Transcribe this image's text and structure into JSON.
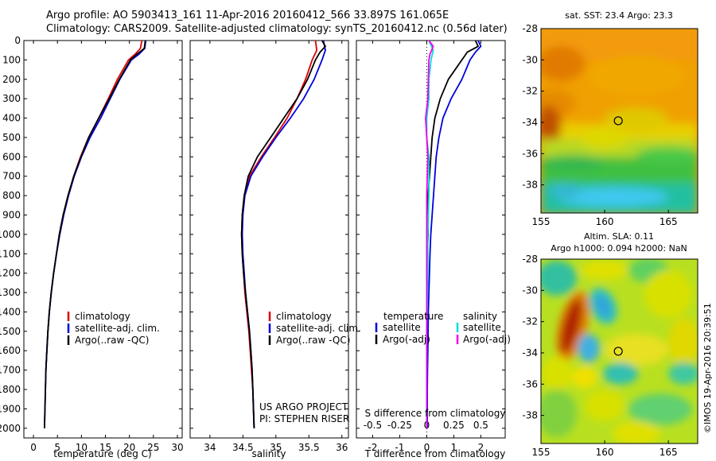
{
  "header": {
    "line1": "Argo profile: AO 5903413_161 11-Apr-2016 20160412_566 33.897S 161.065E",
    "line2": "Climatology: CARS2009. Satellite-adjusted climatology: synTS_20160412.nc (0.56d later)"
  },
  "credit": "US ARGO PROJECT",
  "pi": "PI: STEPHEN RISER",
  "watermark": "©IMOS 19-Apr-2016 20:39:51",
  "colors": {
    "climatology": "#dd0000",
    "satellite": "#0000dd",
    "argo": "#000000",
    "sal_sat": "#00dddd",
    "sal_argo": "#ee00ee"
  },
  "chart_data": [
    {
      "type": "line",
      "xlabel": "temperature (deg C)",
      "ylabel": "",
      "xlim": [
        -2,
        31
      ],
      "ylim": [
        2050,
        0
      ],
      "xticks": [
        0,
        5,
        10,
        15,
        20,
        25,
        30
      ],
      "yticks": [
        0,
        100,
        200,
        300,
        400,
        500,
        600,
        700,
        800,
        900,
        1000,
        1100,
        1200,
        1300,
        1400,
        1500,
        1600,
        1700,
        1800,
        1900,
        2000
      ],
      "legend": [
        "climatology",
        "satellite-adj. clim.",
        "Argo(..raw -QC)"
      ],
      "series": [
        {
          "name": "climatology",
          "color": "#dd0000",
          "points": [
            [
              22.6,
              0
            ],
            [
              22.3,
              40
            ],
            [
              21.2,
              70
            ],
            [
              19.8,
              100
            ],
            [
              17.5,
              200
            ],
            [
              15.6,
              300
            ],
            [
              13.6,
              400
            ],
            [
              11.5,
              500
            ],
            [
              9.8,
              600
            ],
            [
              8.4,
              700
            ],
            [
              7.2,
              800
            ],
            [
              6.2,
              900
            ],
            [
              5.4,
              1000
            ],
            [
              4.8,
              1100
            ],
            [
              4.2,
              1200
            ],
            [
              3.7,
              1300
            ],
            [
              3.3,
              1400
            ],
            [
              3.0,
              1500
            ],
            [
              2.8,
              1600
            ],
            [
              2.6,
              1700
            ]
          ]
        },
        {
          "name": "satellite-adj. clim.",
          "color": "#0000dd",
          "points": [
            [
              23.4,
              0
            ],
            [
              23.2,
              40
            ],
            [
              22.0,
              70
            ],
            [
              20.4,
              100
            ],
            [
              18.0,
              200
            ],
            [
              16.0,
              300
            ],
            [
              14.0,
              400
            ],
            [
              11.8,
              500
            ],
            [
              10.0,
              600
            ],
            [
              8.5,
              700
            ],
            [
              7.3,
              800
            ],
            [
              6.3,
              900
            ],
            [
              5.5,
              1000
            ],
            [
              4.8,
              1100
            ],
            [
              4.2,
              1200
            ],
            [
              3.7,
              1300
            ],
            [
              3.3,
              1400
            ],
            [
              3.0,
              1500
            ],
            [
              2.8,
              1600
            ],
            [
              2.6,
              1700
            ],
            [
              2.5,
              1800
            ],
            [
              2.4,
              1900
            ],
            [
              2.3,
              2000
            ]
          ]
        },
        {
          "name": "Argo(..raw -QC)",
          "color": "#000000",
          "points": [
            [
              23.3,
              0
            ],
            [
              23.1,
              40
            ],
            [
              21.6,
              70
            ],
            [
              20.2,
              100
            ],
            [
              17.9,
              200
            ],
            [
              15.8,
              300
            ],
            [
              13.6,
              400
            ],
            [
              11.5,
              500
            ],
            [
              9.9,
              600
            ],
            [
              8.4,
              700
            ],
            [
              7.2,
              800
            ],
            [
              6.2,
              900
            ],
            [
              5.4,
              1000
            ],
            [
              4.8,
              1100
            ],
            [
              4.2,
              1200
            ],
            [
              3.7,
              1300
            ],
            [
              3.3,
              1400
            ],
            [
              3.0,
              1500
            ],
            [
              2.8,
              1600
            ],
            [
              2.6,
              1700
            ],
            [
              2.5,
              1800
            ],
            [
              2.4,
              1900
            ],
            [
              2.3,
              2000
            ]
          ]
        }
      ]
    },
    {
      "type": "line",
      "xlabel": "salinity",
      "ylabel": "",
      "xlim": [
        33.7,
        36.1
      ],
      "ylim": [
        2050,
        0
      ],
      "xticks": [
        34,
        34.5,
        35,
        35.5,
        36
      ],
      "legend": [
        "climatology",
        "satellite-adj. clim.",
        "Argo(..raw -QC)"
      ],
      "series": [
        {
          "name": "climatology",
          "color": "#dd0000",
          "points": [
            [
              35.6,
              0
            ],
            [
              35.62,
              50
            ],
            [
              35.55,
              100
            ],
            [
              35.45,
              200
            ],
            [
              35.32,
              300
            ],
            [
              35.17,
              400
            ],
            [
              34.98,
              500
            ],
            [
              34.78,
              600
            ],
            [
              34.6,
              700
            ],
            [
              34.52,
              800
            ],
            [
              34.49,
              900
            ],
            [
              34.48,
              1000
            ],
            [
              34.49,
              1100
            ],
            [
              34.51,
              1200
            ],
            [
              34.53,
              1300
            ],
            [
              34.56,
              1400
            ],
            [
              34.59,
              1500
            ],
            [
              34.61,
              1600
            ],
            [
              34.63,
              1700
            ],
            [
              34.65,
              1800
            ],
            [
              34.66,
              1900
            ],
            [
              34.67,
              2000
            ]
          ]
        },
        {
          "name": "satellite-adj. clim.",
          "color": "#0000dd",
          "points": [
            [
              35.72,
              0
            ],
            [
              35.75,
              50
            ],
            [
              35.7,
              100
            ],
            [
              35.58,
              200
            ],
            [
              35.42,
              300
            ],
            [
              35.22,
              400
            ],
            [
              35.0,
              500
            ],
            [
              34.8,
              600
            ],
            [
              34.62,
              700
            ],
            [
              34.53,
              800
            ],
            [
              34.5,
              900
            ],
            [
              34.49,
              1000
            ],
            [
              34.5,
              1100
            ],
            [
              34.52,
              1200
            ],
            [
              34.54,
              1300
            ],
            [
              34.57,
              1400
            ],
            [
              34.6,
              1500
            ],
            [
              34.62,
              1600
            ],
            [
              34.64,
              1700
            ],
            [
              34.65,
              1800
            ],
            [
              34.66,
              1900
            ],
            [
              34.67,
              2000
            ]
          ]
        },
        {
          "name": "Argo(..raw -QC)",
          "color": "#000000",
          "points": [
            [
              35.7,
              0
            ],
            [
              35.75,
              30
            ],
            [
              35.67,
              60
            ],
            [
              35.6,
              100
            ],
            [
              35.48,
              200
            ],
            [
              35.32,
              300
            ],
            [
              35.12,
              400
            ],
            [
              34.92,
              500
            ],
            [
              34.72,
              600
            ],
            [
              34.58,
              700
            ],
            [
              34.52,
              800
            ],
            [
              34.49,
              900
            ],
            [
              34.48,
              1000
            ],
            [
              34.49,
              1100
            ],
            [
              34.51,
              1200
            ],
            [
              34.54,
              1300
            ],
            [
              34.57,
              1400
            ],
            [
              34.6,
              1500
            ],
            [
              34.62,
              1600
            ],
            [
              34.64,
              1700
            ],
            [
              34.65,
              1800
            ],
            [
              34.66,
              1900
            ],
            [
              34.67,
              2000
            ]
          ]
        }
      ]
    },
    {
      "type": "line",
      "xlabel": "T difference from climatology",
      "xlabel_top": "S difference from climatology",
      "xlim": [
        -2.6,
        2.9
      ],
      "s_axis_scale": 0.25,
      "ylim": [
        2050,
        0
      ],
      "xticks": [
        -2,
        -1,
        0,
        1,
        2
      ],
      "sticks": [
        "-0.5",
        "-0.25",
        "0",
        "0.25",
        "0.5"
      ],
      "legend_temperature_title": "temperature",
      "legend_salinity_title": "salinity",
      "legend": [
        "satellite",
        "Argo(-adj)",
        "satellite",
        "Argo(-adj)"
      ],
      "series": [
        {
          "name": "satellite",
          "group": "temperature",
          "color": "#0000dd",
          "points": [
            [
              1.9,
              0
            ],
            [
              2.0,
              30
            ],
            [
              1.8,
              60
            ],
            [
              1.6,
              100
            ],
            [
              1.3,
              200
            ],
            [
              0.9,
              300
            ],
            [
              0.6,
              400
            ],
            [
              0.45,
              500
            ],
            [
              0.35,
              600
            ],
            [
              0.3,
              700
            ],
            [
              0.25,
              800
            ],
            [
              0.2,
              900
            ],
            [
              0.15,
              1000
            ],
            [
              0.12,
              1100
            ],
            [
              0.1,
              1200
            ],
            [
              0.08,
              1300
            ],
            [
              0.06,
              1400
            ],
            [
              0.05,
              1500
            ],
            [
              0.04,
              1600
            ],
            [
              0.03,
              1700
            ],
            [
              0.02,
              1800
            ],
            [
              0.02,
              1900
            ],
            [
              0.02,
              2000
            ]
          ]
        },
        {
          "name": "Argo(-adj)",
          "group": "temperature",
          "color": "#000000",
          "points": [
            [
              1.8,
              0
            ],
            [
              1.9,
              30
            ],
            [
              1.5,
              60
            ],
            [
              1.3,
              100
            ],
            [
              0.8,
              200
            ],
            [
              0.5,
              300
            ],
            [
              0.3,
              400
            ],
            [
              0.2,
              500
            ],
            [
              0.15,
              600
            ],
            [
              0.1,
              700
            ],
            [
              0.05,
              800
            ],
            [
              0.05,
              900
            ],
            [
              0.05,
              1000
            ],
            [
              0.02,
              1100
            ],
            [
              0.0,
              1200
            ],
            [
              0.0,
              1300
            ],
            [
              0.0,
              1400
            ],
            [
              0.0,
              1500
            ],
            [
              0.0,
              1600
            ],
            [
              0.0,
              1700
            ],
            [
              0.0,
              1800
            ],
            [
              0.0,
              1900
            ],
            [
              0.0,
              2000
            ]
          ]
        },
        {
          "name": "satellite",
          "group": "salinity",
          "color": "#00dddd",
          "points": [
            [
              0.02,
              0
            ],
            [
              0.06,
              50
            ],
            [
              0.04,
              100
            ],
            [
              0.02,
              200
            ],
            [
              0.02,
              300
            ],
            [
              0.0,
              400
            ],
            [
              0.0,
              500
            ],
            [
              0.02,
              600
            ],
            [
              0.02,
              800
            ],
            [
              0.01,
              1000
            ],
            [
              0.01,
              1200
            ],
            [
              0.0,
              1500
            ],
            [
              0.0,
              1800
            ],
            [
              0.0,
              2000
            ]
          ]
        },
        {
          "name": "Argo(-adj)",
          "group": "salinity",
          "color": "#ee00ee",
          "points": [
            [
              0.02,
              0
            ],
            [
              0.06,
              30
            ],
            [
              0.03,
              70
            ],
            [
              0.02,
              100
            ],
            [
              0.015,
              200
            ],
            [
              0.01,
              300
            ],
            [
              -0.01,
              400
            ],
            [
              0.0,
              500
            ],
            [
              0.01,
              600
            ],
            [
              0.0,
              800
            ],
            [
              0.0,
              1000
            ],
            [
              0.0,
              1200
            ],
            [
              0.0,
              1500
            ],
            [
              0.0,
              1800
            ],
            [
              0.0,
              2000
            ]
          ]
        }
      ]
    },
    {
      "type": "heatmap",
      "title": "sat. SST: 23.4  Argo: 23.3",
      "xlim": [
        155,
        167.3
      ],
      "ylim": [
        -39.8,
        -28
      ],
      "xticks": [
        155,
        160,
        165
      ],
      "yticks": [
        -28,
        -30,
        -32,
        -34,
        -36,
        -38
      ],
      "marker": [
        161.065,
        -33.897
      ]
    },
    {
      "type": "heatmap",
      "title": "Altim. SLA: 0.11",
      "subtitle": "Argo h1000: 0.094 h2000: NaN",
      "xlim": [
        155,
        167.3
      ],
      "ylim": [
        -39.8,
        -28
      ],
      "xticks": [
        155,
        160,
        165
      ],
      "yticks": [
        -28,
        -30,
        -32,
        -34,
        -36,
        -38
      ],
      "marker": [
        161.065,
        -33.897
      ]
    }
  ]
}
